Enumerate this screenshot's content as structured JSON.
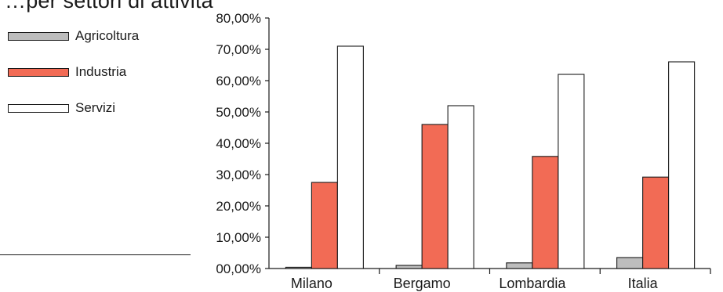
{
  "chart_data": {
    "type": "bar",
    "title": "…per settori di attività",
    "categories": [
      "Milano",
      "Bergamo",
      "Lombardia",
      "Italia"
    ],
    "series": [
      {
        "name": "Agricoltura",
        "values": [
          0.4,
          1.0,
          1.8,
          3.5
        ],
        "color": "#bdbdbd"
      },
      {
        "name": "Industria",
        "values": [
          27.5,
          46.0,
          35.8,
          29.2
        ],
        "color": "#f26b55"
      },
      {
        "name": "Servizi",
        "values": [
          71.0,
          52.0,
          62.0,
          66.0
        ],
        "color": "#ffffff"
      }
    ],
    "ylim": [
      0,
      80
    ],
    "yticks": [
      "00,00%",
      "10,00%",
      "20,00%",
      "30,00%",
      "40,00%",
      "50,00%",
      "60,00%",
      "70,00%",
      "80,00%"
    ],
    "xlabel": "",
    "ylabel": "",
    "legend_position": "left",
    "grid": false
  }
}
